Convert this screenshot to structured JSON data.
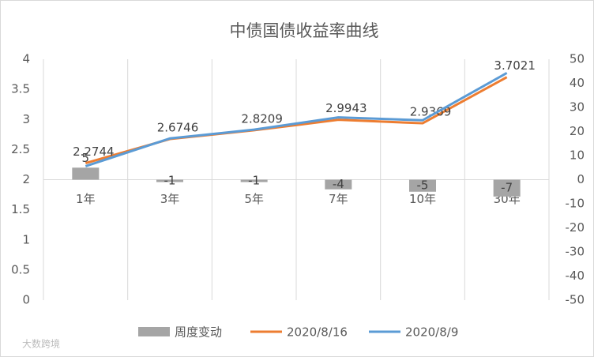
{
  "chart_data": {
    "type": "combo",
    "title": "中债国债收益率曲线",
    "categories": [
      "1年",
      "3年",
      "5年",
      "7年",
      "10年",
      "30年"
    ],
    "series": [
      {
        "name": "周度变动",
        "type": "bar",
        "axis": "y2",
        "color": "#a5a5a5",
        "values": [
          5,
          -1,
          -1,
          -4,
          -5,
          -7
        ]
      },
      {
        "name": "2020/8/16",
        "type": "line",
        "color": "#ed7d31",
        "values": [
          2.2744,
          2.6746,
          2.8209,
          2.9943,
          2.9369,
          3.7021
        ]
      },
      {
        "name": "2020/8/9",
        "type": "line",
        "color": "#5b9bd5",
        "values": [
          2.2244,
          2.6846,
          2.8309,
          3.0343,
          2.9869,
          3.7721
        ]
      }
    ],
    "ylim": [
      0,
      4
    ],
    "yticks": [
      0,
      0.5,
      1,
      1.5,
      2,
      2.5,
      3,
      3.5,
      4
    ],
    "y2lim": [
      -50,
      50
    ],
    "y2ticks": [
      -50,
      -40,
      -30,
      -20,
      -10,
      0,
      10,
      20,
      30,
      40,
      50
    ],
    "legend": "bottom",
    "watermark": "大数跨境"
  }
}
